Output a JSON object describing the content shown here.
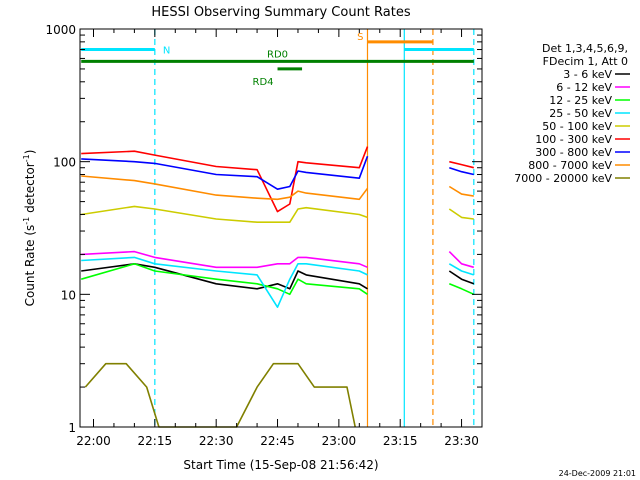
{
  "chart_data": {
    "type": "line",
    "title": "HESSI Observing Summary Count Rates",
    "xlabel": "Start Time (15-Sep-08 21:56:42)",
    "ylabel_main": "Count Rate (s",
    "ylabel_sup1": "-1",
    "ylabel_mid": " detector",
    "ylabel_sup2": "-1",
    "ylabel_end": ")",
    "yscale": "log",
    "ylim": [
      1,
      1000
    ],
    "xlim": [
      "21:56:42",
      "23:35:00"
    ],
    "x_ticks": [
      "22:00",
      "22:15",
      "22:30",
      "22:45",
      "23:00",
      "23:15",
      "23:30"
    ],
    "y_ticks": [
      "1",
      "10",
      "100",
      "1000"
    ],
    "legend": {
      "position": "right",
      "header": [
        "Det 1,3,4,5,6,9,",
        "FDecim 1, Att 0"
      ]
    },
    "series": [
      {
        "name": "3 - 6 keV",
        "color": "#000000",
        "x": [
          "21:57",
          "22:10",
          "22:15",
          "22:30",
          "22:40",
          "22:45",
          "22:48",
          "22:50",
          "22:52",
          "23:05",
          "23:07",
          "23:23",
          "23:27",
          "23:30",
          "23:33"
        ],
        "y": [
          15,
          17,
          16,
          12,
          11,
          12,
          11,
          15,
          14,
          12,
          11,
          null,
          15,
          13,
          12
        ]
      },
      {
        "name": "6 - 12 keV",
        "color": "#ff00ff",
        "x": [
          "21:57",
          "22:10",
          "22:15",
          "22:30",
          "22:40",
          "22:45",
          "22:48",
          "22:50",
          "22:52",
          "23:05",
          "23:07",
          "23:23",
          "23:27",
          "23:30",
          "23:33"
        ],
        "y": [
          20,
          21,
          19,
          16,
          16,
          17,
          17,
          19,
          19,
          17,
          16,
          null,
          21,
          17,
          16
        ]
      },
      {
        "name": "12 - 25 keV",
        "color": "#00ff00",
        "x": [
          "21:57",
          "22:10",
          "22:15",
          "22:30",
          "22:40",
          "22:45",
          "22:48",
          "22:50",
          "22:52",
          "23:05",
          "23:07",
          "23:23",
          "23:27",
          "23:30",
          "23:33"
        ],
        "y": [
          13,
          17,
          15,
          13,
          12,
          11,
          10,
          13,
          12,
          11,
          10,
          null,
          12,
          11,
          10
        ]
      },
      {
        "name": "25 - 50 keV",
        "color": "#00e5ff",
        "x": [
          "21:57",
          "22:10",
          "22:15",
          "22:30",
          "22:40",
          "22:45",
          "22:48",
          "22:50",
          "22:52",
          "23:05",
          "23:07",
          "23:23",
          "23:27",
          "23:30",
          "23:33"
        ],
        "y": [
          18,
          19,
          17,
          15,
          14,
          8,
          13,
          17,
          17,
          15,
          14,
          null,
          17,
          15,
          14
        ]
      },
      {
        "name": "50 - 100 keV",
        "color": "#cccc00",
        "x": [
          "21:57",
          "22:10",
          "22:15",
          "22:30",
          "22:40",
          "22:45",
          "22:48",
          "22:50",
          "22:52",
          "23:05",
          "23:07",
          "23:23",
          "23:27",
          "23:30",
          "23:33"
        ],
        "y": [
          40,
          46,
          44,
          37,
          35,
          35,
          35,
          44,
          45,
          40,
          38,
          null,
          44,
          38,
          37
        ]
      },
      {
        "name": "100 - 300 keV",
        "color": "#ff0000",
        "x": [
          "21:57",
          "22:10",
          "22:15",
          "22:30",
          "22:40",
          "22:45",
          "22:48",
          "22:50",
          "22:52",
          "23:05",
          "23:07",
          "23:23",
          "23:27",
          "23:30",
          "23:33"
        ],
        "y": [
          115,
          120,
          112,
          92,
          87,
          42,
          48,
          100,
          98,
          90,
          130,
          null,
          100,
          95,
          90
        ]
      },
      {
        "name": "300 - 800 keV",
        "color": "#0000ff",
        "x": [
          "21:57",
          "22:10",
          "22:15",
          "22:30",
          "22:40",
          "22:45",
          "22:48",
          "22:50",
          "22:52",
          "23:05",
          "23:07",
          "23:23",
          "23:27",
          "23:30",
          "23:33"
        ],
        "y": [
          105,
          100,
          97,
          80,
          77,
          62,
          65,
          85,
          83,
          75,
          110,
          null,
          90,
          84,
          80
        ]
      },
      {
        "name": "800 - 7000 keV",
        "color": "#ff8c00",
        "x": [
          "21:57",
          "22:10",
          "22:15",
          "22:30",
          "22:40",
          "22:45",
          "22:48",
          "22:50",
          "22:52",
          "23:05",
          "23:07",
          "23:23",
          "23:27",
          "23:30",
          "23:33"
        ],
        "y": [
          78,
          72,
          68,
          56,
          53,
          52,
          54,
          60,
          58,
          52,
          63,
          null,
          65,
          57,
          55
        ]
      },
      {
        "name": "7000 - 20000 keV",
        "color": "#808000",
        "x": [
          "21:58",
          "22:03",
          "22:08",
          "22:13",
          "22:16",
          "22:35",
          "22:40",
          "22:44",
          "22:47",
          "22:50",
          "22:54",
          "22:58",
          "23:02",
          "23:04"
        ],
        "y": [
          2,
          3,
          3,
          2,
          1,
          1,
          2,
          3,
          3,
          3,
          2,
          2,
          2,
          1
        ]
      }
    ],
    "annotations": [
      {
        "label": "N",
        "color": "#00e5ff",
        "start": "21:57",
        "end": "22:15",
        "y": 700
      },
      {
        "label": "S",
        "color": "#ff8c00",
        "start": "23:07",
        "end": "23:23",
        "y": 800
      },
      {
        "label": "",
        "color": "#00e5ff",
        "start": "23:16",
        "end": "23:33",
        "y": 700
      },
      {
        "label": "RD0",
        "color": "#008000",
        "start": "21:57",
        "end": "23:33",
        "y": 570
      },
      {
        "label": "RD4",
        "color": "#008000",
        "start": "22:45",
        "end": "22:51",
        "y": 500
      }
    ],
    "vlines": [
      {
        "time": "22:15",
        "color": "#00e5ff",
        "dash": true
      },
      {
        "time": "23:07",
        "color": "#ff8c00",
        "dash": false
      },
      {
        "time": "23:16",
        "color": "#00e5ff",
        "dash": false
      },
      {
        "time": "23:23",
        "color": "#ff8c00",
        "dash": true
      },
      {
        "time": "23:33",
        "color": "#00e5ff",
        "dash": true
      }
    ],
    "footer_date": "24-Dec-2009 21:01"
  }
}
